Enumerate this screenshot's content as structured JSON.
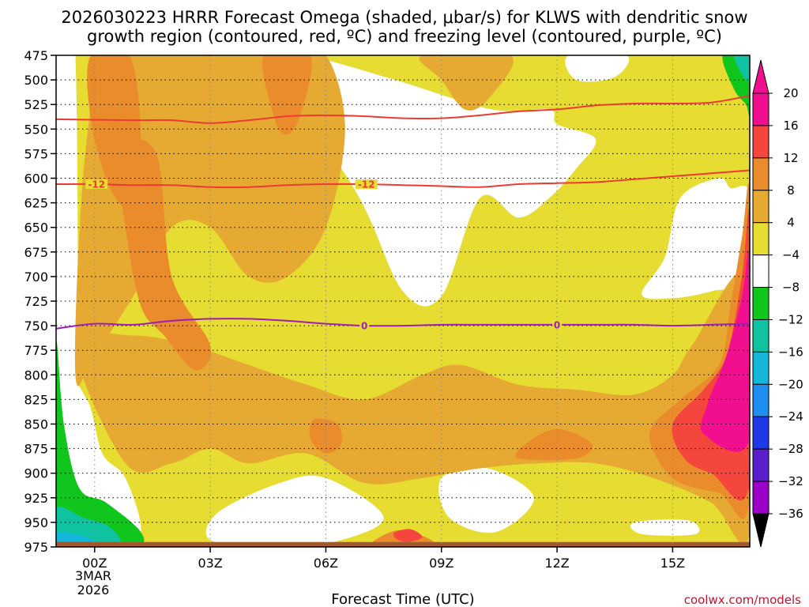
{
  "chart_data": {
    "type": "heatmap",
    "title_line1": "2026030223 HRRR Forecast Omega (shaded, μbar/s) for KLWS with dendritic snow",
    "title_line2": "growth region (contoured, red, ºC) and freezing level (contoured, purple, ºC)",
    "xlabel": "Forecast Time (UTC)",
    "x_ticks": [
      {
        "hour": 0,
        "label": "00Z"
      },
      {
        "hour": 3,
        "label": "03Z"
      },
      {
        "hour": 6,
        "label": "06Z"
      },
      {
        "hour": 9,
        "label": "09Z"
      },
      {
        "hour": 12,
        "label": "12Z"
      },
      {
        "hour": 15,
        "label": "15Z"
      }
    ],
    "date_label": [
      "3MAR",
      "2026"
    ],
    "xlim": [
      -1,
      17
    ],
    "ylim": [
      975,
      475
    ],
    "y_ticks": [
      475,
      500,
      525,
      550,
      575,
      600,
      625,
      650,
      675,
      700,
      725,
      750,
      775,
      800,
      825,
      850,
      875,
      900,
      925,
      950,
      975
    ],
    "colorbar": {
      "levels": [
        -36,
        -32,
        -28,
        -24,
        -20,
        -16,
        -12,
        -8,
        -4,
        4,
        8,
        12,
        16,
        20
      ],
      "colors": [
        "#a6a6a6",
        "#9b00c9",
        "#5a1ecf",
        "#1f39e6",
        "#1e8ff0",
        "#12b7d9",
        "#0fc3a0",
        "#10c61c",
        "#ffffff",
        "#e6dc32",
        "#e6aa32",
        "#ea8c2c",
        "#f4463c",
        "#f20f8f"
      ],
      "under_color": "#000000",
      "over_color": "#f20f8f"
    },
    "contours": [
      {
        "name": "dgz-top",
        "label": "",
        "color": "#ee3a32",
        "x": [
          -1,
          1,
          2,
          3,
          4,
          5,
          6,
          7,
          8,
          9,
          10,
          11,
          12,
          13,
          14,
          15,
          16,
          17
        ],
        "y": [
          540,
          541,
          541,
          544,
          541,
          537,
          536,
          537,
          539,
          539,
          536,
          532,
          530,
          526,
          524,
          524,
          523,
          516
        ]
      },
      {
        "name": "dgz-bottom",
        "label": "-12",
        "color": "#ee3a32",
        "x": [
          -1,
          0,
          1,
          2,
          3,
          4,
          5,
          6,
          7,
          8,
          9,
          10,
          11,
          12,
          13,
          14,
          15,
          16,
          17
        ],
        "y": [
          606,
          606,
          607,
          607,
          609,
          609,
          607,
          606,
          606,
          607,
          608,
          609,
          606,
          605,
          604,
          601,
          598,
          595,
          592
        ]
      },
      {
        "name": "freezing-level",
        "label": "0",
        "color": "#9b1eb8",
        "x": [
          -1,
          0,
          1,
          2,
          3,
          4,
          5,
          6,
          7,
          8,
          9,
          10,
          11,
          12,
          13,
          14,
          15,
          16,
          17
        ],
        "y": [
          753,
          748,
          749,
          745,
          743,
          743,
          745,
          748,
          750,
          750,
          749,
          749,
          749,
          749,
          749,
          749,
          750,
          749,
          748
        ]
      }
    ],
    "contour_labels": [
      {
        "line": "dgz-bottom",
        "text": "-12",
        "hour": 0.05
      },
      {
        "line": "dgz-bottom",
        "text": "-12",
        "hour": 7.05
      },
      {
        "line": "freezing-level",
        "text": "0",
        "hour": 7.0
      },
      {
        "line": "freezing-level",
        "text": "0",
        "hour": 12.0
      }
    ],
    "shading_regions": [
      {
        "name": "omega-base-yellow",
        "level": "4 to 8",
        "color": "#e6dc32",
        "x": [
          -1,
          17,
          17,
          -1
        ],
        "y": [
          475,
          475,
          975,
          975
        ]
      },
      {
        "name": "omega-white-top-left",
        "level": "-4 to 4",
        "color": "#ffffff",
        "x": [
          -1,
          -0.5,
          -0.5,
          -1
        ],
        "y": [
          475,
          475,
          975,
          975
        ]
      },
      {
        "name": "omega-white-upper-mid",
        "level": "-4 to 4",
        "color": "#ffffff",
        "x": [
          4.5,
          5.5,
          7.8,
          10.3,
          11.8,
          12.0,
          13.0,
          12.5,
          11.8,
          11.0,
          10.0,
          9.0,
          8.0,
          6.8
        ],
        "y": [
          475,
          475,
          500,
          530,
          530,
          545,
          560,
          590,
          620,
          640,
          620,
          720,
          715,
          615
        ]
      },
      {
        "name": "omega-white-right",
        "level": "-4 to 4",
        "color": "#ffffff",
        "x": [
          15.2,
          16.2,
          16.5,
          17,
          17,
          16.0,
          15.0,
          14.2,
          14.8
        ],
        "y": [
          620,
          600,
          610,
          615,
          700,
          715,
          722,
          718,
          680
        ]
      },
      {
        "name": "omega-white-top-notch-a",
        "level": "-4 to 4",
        "color": "#ffffff",
        "x": [
          1.8,
          2.6,
          2.4,
          1.9
        ],
        "y": [
          475,
          475,
          500,
          505
        ]
      },
      {
        "name": "omega-white-top-notch-b",
        "level": "-4 to 4",
        "color": "#ffffff",
        "x": [
          12.3,
          13.8,
          13.5,
          12.5
        ],
        "y": [
          475,
          475,
          497,
          500
        ]
      },
      {
        "name": "omega-white-lower-left",
        "level": "-4 to 4",
        "color": "#ffffff",
        "x": [
          -1,
          -0.2,
          0.2,
          0.8,
          1.2,
          0.5,
          -1
        ],
        "y": [
          800,
          825,
          880,
          905,
          960,
          975,
          975
        ]
      },
      {
        "name": "omega-white-lower-mid",
        "level": "-4 to 4",
        "color": "#ffffff",
        "x": [
          3.2,
          4.8,
          6.0,
          7.5,
          6.2,
          4.5,
          3.0
        ],
        "y": [
          940,
          910,
          905,
          945,
          970,
          975,
          968
        ]
      },
      {
        "name": "omega-white-lower-right",
        "level": "-4 to 4",
        "color": "#ffffff",
        "x": [
          9.0,
          10.2,
          11.4,
          10.4,
          9.2
        ],
        "y": [
          905,
          895,
          925,
          960,
          945
        ]
      },
      {
        "name": "omega-white-dot-right",
        "level": "-4 to 4",
        "color": "#ffffff",
        "x": [
          14.0,
          15.4,
          15.6,
          14.2
        ],
        "y": [
          950,
          948,
          962,
          962
        ]
      },
      {
        "name": "omega-orange-upper-left",
        "level": "8 to 12",
        "color": "#e6aa32",
        "x": [
          0.2,
          1.0,
          2.0,
          3.0,
          4.0,
          5.0,
          6.0,
          6.5,
          6.0,
          5.0,
          4.0,
          3.0,
          2.0,
          1.0,
          0.0,
          -0.5,
          -0.3
        ],
        "y": [
          475,
          475,
          475,
          475,
          475,
          475,
          475,
          550,
          650,
          700,
          700,
          650,
          650,
          720,
          780,
          800,
          600
        ]
      },
      {
        "name": "omega-orange-top-mid",
        "level": "8 to 12",
        "color": "#e6aa32",
        "x": [
          8.5,
          10.8,
          10.2,
          9.6,
          9.0
        ],
        "y": [
          475,
          475,
          520,
          530,
          500
        ]
      },
      {
        "name": "omega-orange-lower-band",
        "level": "8 to 12",
        "color": "#e6aa32",
        "x": [
          -0.5,
          1.0,
          2.5,
          4.0,
          5.5,
          7.0,
          8.5,
          9.5,
          11.0,
          12.5,
          14.0,
          15.0,
          15.5,
          17,
          17,
          16.0,
          14.5,
          13.0,
          11.5,
          10.0,
          8.5,
          7.0,
          5.5,
          4.0,
          3.0,
          2.0,
          0.8
        ],
        "y": [
          770,
          760,
          770,
          790,
          810,
          825,
          800,
          790,
          810,
          815,
          820,
          800,
          770,
          700,
          960,
          930,
          905,
          890,
          890,
          895,
          905,
          910,
          880,
          890,
          875,
          890,
          890
        ]
      },
      {
        "name": "omega-darkorange-col-a",
        "level": "12 to 16",
        "color": "#ea8c2c",
        "x": [
          -0.1,
          0.9,
          1.2,
          1.0,
          0.4,
          -0.1
        ],
        "y": [
          475,
          475,
          560,
          630,
          610,
          540
        ]
      },
      {
        "name": "omega-darkorange-col-b",
        "level": "12 to 16",
        "color": "#ea8c2c",
        "x": [
          0.6,
          1.6,
          2.0,
          3.0,
          2.6,
          1.8,
          1.2,
          0.8
        ],
        "y": [
          570,
          575,
          700,
          770,
          795,
          760,
          730,
          650
        ]
      },
      {
        "name": "omega-darkorange-col-c",
        "level": "12 to 16",
        "color": "#ea8c2c",
        "x": [
          4.4,
          5.6,
          5.3,
          4.9,
          4.6
        ],
        "y": [
          475,
          475,
          540,
          555,
          530
        ]
      },
      {
        "name": "omega-darkorange-spot-a",
        "level": "12 to 16",
        "color": "#ea8c2c",
        "x": [
          5.7,
          6.3,
          6.4,
          6.0,
          5.6
        ],
        "y": [
          845,
          850,
          870,
          880,
          865
        ]
      },
      {
        "name": "omega-darkorange-spot-b",
        "level": "12 to 16",
        "color": "#ea8c2c",
        "x": [
          11.2,
          12.0,
          12.9,
          12.5,
          11.0
        ],
        "y": [
          870,
          855,
          870,
          885,
          885
        ]
      },
      {
        "name": "omega-darkorange-spot-c",
        "level": "12 to 16",
        "color": "#ea8c2c",
        "x": [
          7.4,
          8.0,
          8.8,
          8.2,
          7.2
        ],
        "y": [
          965,
          958,
          970,
          975,
          975
        ]
      },
      {
        "name": "omega-darkorange-right",
        "level": "12 to 16",
        "color": "#ea8c2c",
        "x": [
          17,
          17,
          16.2,
          15.0,
          14.4,
          15.2,
          16.2,
          16.5,
          16.8
        ],
        "y": [
          620,
          925,
          920,
          905,
          860,
          825,
          790,
          730,
          660
        ]
      },
      {
        "name": "omega-red-right",
        "level": "16 to 20",
        "color": "#f4463c",
        "x": [
          17,
          17,
          16.0,
          15.3,
          15.0,
          15.8,
          16.4,
          16.8
        ],
        "y": [
          640,
          910,
          900,
          885,
          850,
          815,
          780,
          700
        ]
      },
      {
        "name": "omega-red-spot",
        "level": "16 to 20",
        "color": "#f4463c",
        "x": [
          7.8,
          8.2,
          8.5,
          8.1,
          7.8
        ],
        "y": [
          960,
          957,
          965,
          970,
          966
        ]
      },
      {
        "name": "omega-magenta-right",
        "level": "> 20",
        "color": "#f20f8f",
        "x": [
          17,
          17,
          15.8,
          15.9,
          16.4,
          16.8
        ],
        "y": [
          680,
          865,
          860,
          830,
          780,
          720
        ]
      },
      {
        "name": "omega-green-right-top",
        "level": "-8 to -4",
        "color": "#10c61c",
        "x": [
          16.3,
          17,
          17,
          16.9,
          16.6
        ],
        "y": [
          475,
          475,
          535,
          525,
          510
        ]
      },
      {
        "name": "omega-teal-right-top",
        "level": "-12 to -8",
        "color": "#0fc3a0",
        "x": [
          16.6,
          17,
          17,
          16.8
        ],
        "y": [
          475,
          475,
          500,
          495
        ]
      },
      {
        "name": "omega-green-lower-left",
        "level": "-8 to -4",
        "color": "#10c61c",
        "x": [
          -1,
          -0.8,
          -0.4,
          0.3,
          1.2,
          1.0,
          -1
        ],
        "y": [
          770,
          850,
          915,
          930,
          960,
          975,
          975
        ]
      },
      {
        "name": "omega-teal-lower-left",
        "level": "-12 to -8",
        "color": "#0fc3a0",
        "x": [
          -1,
          -0.3,
          0.4,
          0.6,
          -1
        ],
        "y": [
          935,
          945,
          955,
          975,
          975
        ]
      },
      {
        "name": "omega-blue-lower-left",
        "level": "-16 to -12",
        "color": "#12b7d9",
        "x": [
          -1,
          -0.2,
          0.0,
          -1
        ],
        "y": [
          960,
          965,
          975,
          975
        ]
      }
    ],
    "ground": {
      "color": "#9d5b2e",
      "pressure_top": 970
    }
  },
  "credit": "coolwx.com/models",
  "cb_labels": [
    "20",
    "16",
    "12",
    "8",
    "4",
    "−4",
    "−8",
    "−12",
    "−16",
    "−20",
    "−24",
    "−28",
    "−32",
    "−36"
  ]
}
